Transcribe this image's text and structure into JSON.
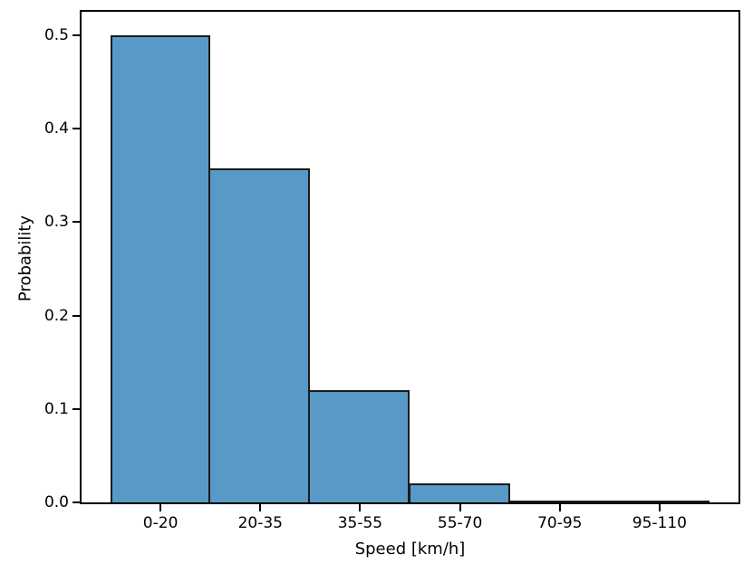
{
  "figure": {
    "background": "#ffffff"
  },
  "chart_data": {
    "type": "bar",
    "title": "",
    "categories": [
      "0-20",
      "20-35",
      "35-55",
      "55-70",
      "70-95",
      "95-110"
    ],
    "values": [
      0.5,
      0.357,
      0.12,
      0.02,
      0.002,
      0.002
    ],
    "xlabel": "Speed [km/h]",
    "ylabel": "Probability",
    "ylim": [
      0,
      0.525
    ],
    "yticks": [
      {
        "value": 0.0,
        "label": "0.0"
      },
      {
        "value": 0.1,
        "label": "0.1"
      },
      {
        "value": 0.2,
        "label": "0.2"
      },
      {
        "value": 0.3,
        "label": "0.3"
      },
      {
        "value": 0.4,
        "label": "0.4"
      },
      {
        "value": 0.5,
        "label": "0.5"
      }
    ],
    "grid": false,
    "legend_position": "none",
    "bar_color": "#5799c7",
    "bar_edge_color": "#1a1a1a",
    "axis_color": "#000000"
  }
}
